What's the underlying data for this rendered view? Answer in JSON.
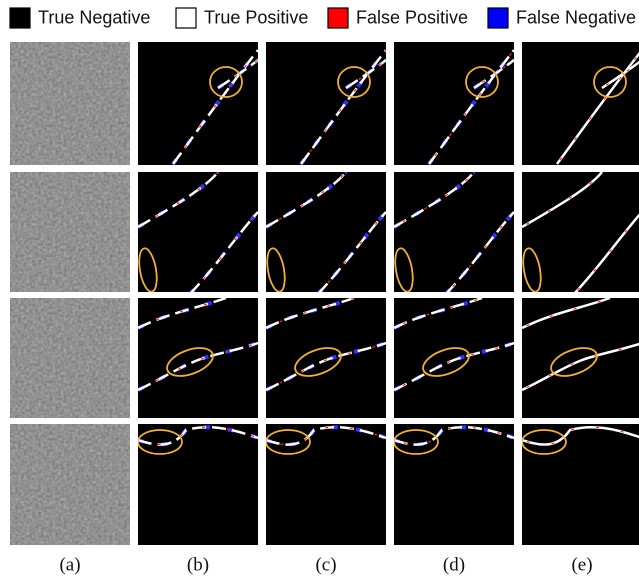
{
  "legend": [
    {
      "label": "True Negative",
      "color": "#000000"
    },
    {
      "label": "True Positive",
      "color": "#ffffff"
    },
    {
      "label": "False Positive",
      "color": "#ff0000"
    },
    {
      "label": "False Negative",
      "color": "#0000ff"
    }
  ],
  "column_labels": [
    "(a)",
    "(b)",
    "(c)",
    "(d)",
    "(e)"
  ]
}
